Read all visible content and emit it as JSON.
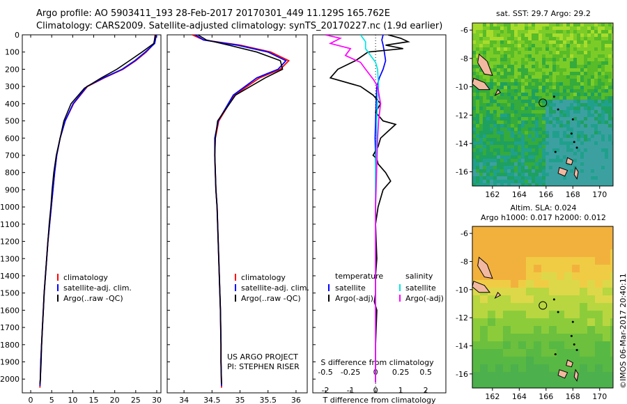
{
  "header": {
    "line1": "Argo profile: AO 5903411_193 28-Feb-2017 20170301_449 11.129S 165.762E",
    "line2": "Climatology: CARS2009. Satellite-adjusted climatology: synTS_20170227.nc (1.9d earlier)"
  },
  "colors": {
    "climatology": "#ff0000",
    "satellite": "#0000ff",
    "argo": "#000000",
    "sal_satellite": "#00e5e5",
    "sal_argo": "#ff00ff"
  },
  "chart_data": [
    {
      "type": "line",
      "panel": "temperature",
      "xlabel": "temperature (deg C)",
      "ylabel": "",
      "xlim": [
        -2,
        31
      ],
      "ylim": [
        2080,
        0
      ],
      "xticks": [
        0,
        5,
        10,
        15,
        20,
        25,
        30
      ],
      "yticks": [
        0,
        100,
        200,
        300,
        400,
        500,
        600,
        700,
        800,
        900,
        1000,
        1100,
        1200,
        1300,
        1400,
        1500,
        1600,
        1700,
        1800,
        1900,
        2000
      ],
      "legend": [
        "climatology",
        "satellite-adj. clim.",
        "Argo(..raw -QC)"
      ],
      "legend_position": "lower-middle",
      "series": [
        {
          "name": "climatology",
          "color": "#ff0000",
          "x": [
            29.6,
            29.4,
            27.5,
            25.0,
            22.0,
            17.5,
            13.5,
            10.2,
            8.2,
            7.0,
            6.2,
            5.7,
            5.3,
            4.9,
            4.5,
            4.1,
            3.8,
            3.5,
            3.2,
            3.0,
            2.8,
            2.6,
            2.4,
            2.3,
            2.2
          ],
          "y": [
            0,
            50,
            100,
            150,
            200,
            250,
            300,
            400,
            500,
            600,
            700,
            800,
            900,
            1000,
            1100,
            1200,
            1300,
            1400,
            1500,
            1600,
            1700,
            1800,
            1900,
            2000,
            2050
          ]
        },
        {
          "name": "satellite-adj. clim.",
          "color": "#0000ff",
          "x": [
            29.9,
            29.5,
            27.3,
            24.8,
            21.8,
            17.3,
            13.4,
            10.1,
            8.2,
            7.0,
            6.2,
            5.7,
            5.3,
            4.9,
            4.5,
            4.1,
            3.8,
            3.5,
            3.2,
            3.0,
            2.8,
            2.6,
            2.4,
            2.3,
            2.2
          ],
          "y": [
            0,
            50,
            100,
            150,
            200,
            250,
            300,
            400,
            500,
            600,
            700,
            800,
            900,
            1000,
            1100,
            1200,
            1300,
            1400,
            1500,
            1600,
            1700,
            1800,
            1900,
            2000,
            2040
          ]
        },
        {
          "name": "Argo(..raw -QC)",
          "color": "#000000",
          "x": [
            29.7,
            29.3,
            26.5,
            23.5,
            20.5,
            16.8,
            12.8,
            9.6,
            7.9,
            7.0,
            6.1,
            5.5,
            5.1,
            4.8,
            4.4,
            4.1,
            3.8,
            3.5,
            3.2,
            3.0,
            2.8,
            2.6,
            2.5,
            2.3,
            2.2
          ],
          "y": [
            0,
            50,
            100,
            150,
            200,
            250,
            310,
            400,
            500,
            600,
            700,
            800,
            900,
            1000,
            1100,
            1200,
            1300,
            1400,
            1500,
            1600,
            1700,
            1800,
            1900,
            2000,
            2030
          ]
        }
      ]
    },
    {
      "type": "line",
      "panel": "salinity",
      "xlabel": "salinity",
      "xlim": [
        33.7,
        36.2
      ],
      "ylim": [
        2080,
        0
      ],
      "xticks": [
        34,
        34.5,
        35,
        35.5,
        36
      ],
      "legend": [
        "climatology",
        "satellite-adj. clim.",
        "Argo(..raw -QC)"
      ],
      "legend_position": "lower-middle",
      "annotations": [
        "US ARGO PROJECT",
        "PI: STEPHEN RISER"
      ],
      "series": [
        {
          "name": "climatology",
          "color": "#ff0000",
          "x": [
            34.15,
            34.35,
            35.0,
            35.55,
            35.87,
            35.72,
            35.35,
            34.9,
            34.62,
            34.56,
            34.55,
            34.56,
            34.57,
            34.59,
            34.6,
            34.61,
            34.62,
            34.63,
            34.64,
            34.65,
            34.66,
            34.66,
            34.67
          ],
          "y": [
            0,
            30,
            60,
            100,
            150,
            200,
            250,
            350,
            500,
            600,
            700,
            800,
            900,
            1000,
            1100,
            1200,
            1300,
            1400,
            1500,
            1600,
            1800,
            1900,
            2050
          ]
        },
        {
          "name": "satellite-adj. clim.",
          "color": "#0000ff",
          "x": [
            34.2,
            34.35,
            34.95,
            35.5,
            35.82,
            35.68,
            35.3,
            34.88,
            34.61,
            34.55,
            34.55,
            34.56,
            34.57,
            34.59,
            34.6,
            34.61,
            34.62,
            34.63,
            34.64,
            34.65,
            34.66,
            34.66,
            34.67
          ],
          "y": [
            0,
            30,
            60,
            100,
            150,
            200,
            250,
            350,
            500,
            600,
            700,
            800,
            900,
            1000,
            1100,
            1200,
            1300,
            1400,
            1500,
            1600,
            1800,
            1900,
            2040
          ]
        },
        {
          "name": "Argo(..raw -QC)",
          "color": "#000000",
          "x": [
            34.25,
            34.4,
            34.8,
            35.3,
            35.72,
            35.76,
            35.45,
            34.92,
            34.6,
            34.56,
            34.55,
            34.56,
            34.57,
            34.59,
            34.6,
            34.61,
            34.62,
            34.63,
            34.64,
            34.65,
            34.66,
            34.66,
            34.67
          ],
          "y": [
            0,
            30,
            60,
            100,
            150,
            200,
            250,
            350,
            500,
            600,
            700,
            800,
            900,
            1000,
            1100,
            1200,
            1300,
            1400,
            1500,
            1600,
            1800,
            1900,
            2030
          ]
        }
      ]
    },
    {
      "type": "line",
      "panel": "difference",
      "xlabel": "T difference from climatology",
      "top_label": "S difference from climatology",
      "xlim": [
        -2.5,
        2.8
      ],
      "ylim": [
        2080,
        0
      ],
      "xticks": [
        -2,
        -1,
        0,
        1,
        2
      ],
      "s_ticks": [
        -0.5,
        -0.25,
        0,
        0.25,
        0.5
      ],
      "s_tick_labels": [
        "-0.5",
        "-0.25",
        "0",
        "0.25",
        "0.5"
      ],
      "legend": {
        "temperature": {
          "title": "temperature",
          "items": [
            "satellite",
            "Argo(-adj)"
          ]
        },
        "salinity": {
          "title": "salinity",
          "items": [
            "satellite",
            "Argo(-adj)"
          ]
        }
      },
      "series": [
        {
          "name": "temperature satellite",
          "color": "#0000ff",
          "x": [
            0.3,
            0.25,
            0.3,
            0.35,
            0.4,
            0.3,
            0.15,
            0.05,
            0.02,
            0.0,
            -0.02,
            0.0,
            0.0,
            0.0,
            0.0,
            0.0,
            0.0,
            0.0,
            0.0,
            0.0,
            0.0
          ],
          "y": [
            0,
            30,
            60,
            100,
            150,
            200,
            250,
            300,
            400,
            500,
            600,
            700,
            800,
            1000,
            1200,
            1400,
            1500,
            1600,
            1800,
            1900,
            2020
          ]
        },
        {
          "name": "temperature Argo(-adj)",
          "color": "#000000",
          "x": [
            0.5,
            1.0,
            1.3,
            0.4,
            1.1,
            -0.3,
            -0.8,
            -1.5,
            -1.8,
            -0.6,
            -0.1,
            0.2,
            0.0,
            0.3,
            0.8,
            0.5,
            0.2,
            0.1,
            -0.1,
            0.05,
            0.1,
            0.4,
            0.6,
            0.3,
            0.1,
            0.0,
            0.05,
            0.0,
            0.0,
            -0.05,
            0.05,
            0.0,
            0.0
          ],
          "y": [
            0,
            20,
            40,
            60,
            80,
            100,
            150,
            200,
            250,
            300,
            350,
            400,
            450,
            500,
            520,
            560,
            600,
            650,
            700,
            720,
            750,
            800,
            850,
            900,
            1000,
            1100,
            1300,
            1400,
            1500,
            1550,
            1600,
            1800,
            2020
          ]
        },
        {
          "name": "salinity satellite",
          "color": "#00e5e5",
          "x": [
            -0.15,
            -0.1,
            -0.1,
            -0.05,
            0.0,
            0.02,
            0.03,
            0.02,
            0.01,
            0.01,
            0.0,
            0.0,
            0.0,
            0.0,
            0.0,
            0.0,
            0.0
          ],
          "y": [
            0,
            40,
            80,
            120,
            160,
            200,
            300,
            400,
            500,
            600,
            800,
            1000,
            1200,
            1500,
            1700,
            1900,
            2020
          ]
        },
        {
          "name": "salinity Argo(-adj)",
          "color": "#ff00ff",
          "x": [
            -0.5,
            -0.35,
            -0.45,
            -0.25,
            -0.3,
            -0.15,
            -0.1,
            -0.02,
            0.02,
            0.05,
            0.03,
            0.02,
            0.01,
            0.0,
            0.0,
            0.0,
            0.0
          ],
          "y": [
            0,
            20,
            50,
            80,
            120,
            160,
            200,
            260,
            300,
            400,
            500,
            600,
            800,
            1000,
            1400,
            1800,
            2020
          ]
        }
      ]
    },
    {
      "type": "heatmap",
      "panel": "sst-map",
      "title": "sat. SST: 29.7  Argo: 29.2",
      "xlim": [
        160.5,
        171
      ],
      "ylim": [
        -17,
        -5.5
      ],
      "xticks": [
        162,
        164,
        166,
        168,
        170
      ],
      "yticks": [
        -6,
        -8,
        -10,
        -12,
        -14,
        -16
      ],
      "argo_position": {
        "lon": 165.762,
        "lat": -11.129
      }
    },
    {
      "type": "heatmap",
      "panel": "sla-map",
      "title": "Altim. SLA: 0.024",
      "subtitle": "Argo h1000: 0.017 h2000: 0.012",
      "xlim": [
        160.5,
        171
      ],
      "ylim": [
        -17,
        -5.5
      ],
      "xticks": [
        162,
        164,
        166,
        168,
        170
      ],
      "yticks": [
        -6,
        -8,
        -10,
        -12,
        -14,
        -16
      ],
      "argo_position": {
        "lon": 165.762,
        "lat": -11.129
      }
    }
  ],
  "footer": {
    "credit": "©IMOS 06-Mar-2017 20:40:11"
  }
}
